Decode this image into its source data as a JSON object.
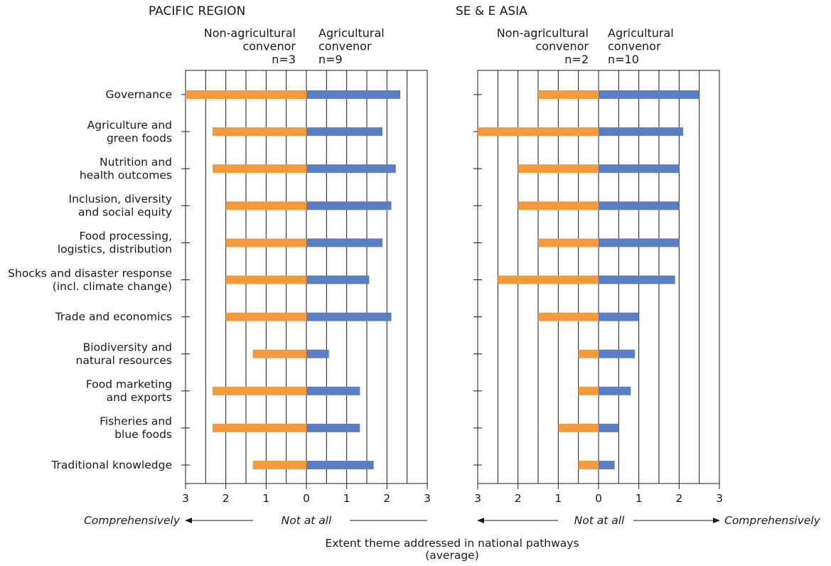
{
  "chart_data": {
    "type": "bar",
    "orientation": "horizontal-diverging",
    "categories": [
      [
        "Governance"
      ],
      [
        "Agriculture and",
        "green foods"
      ],
      [
        "Nutrition and",
        "health outcomes"
      ],
      [
        "Inclusion, diversity",
        "and social equity"
      ],
      [
        "Food processing,",
        "logistics, distribution"
      ],
      [
        "Shocks and disaster response",
        "(incl. climate change)"
      ],
      [
        "Trade and economics"
      ],
      [
        "Biodiversity and",
        "natural resources"
      ],
      [
        "Food marketing",
        "and exports"
      ],
      [
        "Fisheries and",
        "blue foods"
      ],
      [
        "Traditional knowledge"
      ]
    ],
    "xlim": [
      -3,
      3
    ],
    "xticks": [
      -3,
      -2,
      -1,
      0,
      1,
      2,
      3
    ],
    "xtick_labels": [
      "3",
      "2",
      "1",
      "0",
      "1",
      "2",
      "3"
    ],
    "grid": true,
    "panels": [
      {
        "title": "PACIFIC REGION",
        "legend_left": [
          "Non-agricultural",
          "convenor",
          "n=3"
        ],
        "legend_right": [
          "Agricultural",
          "convenor",
          "n=9"
        ],
        "series": [
          {
            "name": "Non-agricultural convenor",
            "color": "#F59A3C",
            "values": [
              3.0,
              2.33,
              2.33,
              2.0,
              2.0,
              2.0,
              2.0,
              1.33,
              2.33,
              2.33,
              1.33
            ]
          },
          {
            "name": "Agricultural convenor",
            "color": "#5B7DC2",
            "values": [
              2.33,
              1.89,
              2.22,
              2.11,
              1.89,
              1.56,
              2.11,
              0.56,
              1.33,
              1.33,
              1.67
            ]
          }
        ],
        "axis_labels": {
          "left": "Comprehensively",
          "center": "Not at all"
        }
      },
      {
        "title": "SE & E ASIA",
        "legend_left": [
          "Non-agricultural",
          "convenor",
          "n=2"
        ],
        "legend_right": [
          "Agricultural",
          "convenor",
          "n=10"
        ],
        "series": [
          {
            "name": "Non-agricultural convenor",
            "color": "#F59A3C",
            "values": [
              1.5,
              3.0,
              2.0,
              2.0,
              1.5,
              2.5,
              1.5,
              0.5,
              0.5,
              1.0,
              0.5
            ]
          },
          {
            "name": "Agricultural convenor",
            "color": "#5B7DC2",
            "values": [
              2.5,
              2.1,
              2.0,
              2.0,
              2.0,
              1.9,
              1.0,
              0.9,
              0.8,
              0.5,
              0.4
            ]
          }
        ],
        "axis_labels": {
          "center": "Not at all",
          "right": "Comprehensively"
        }
      }
    ],
    "xlabel": [
      "Extent theme addressed in national pathways",
      "(average)"
    ]
  }
}
